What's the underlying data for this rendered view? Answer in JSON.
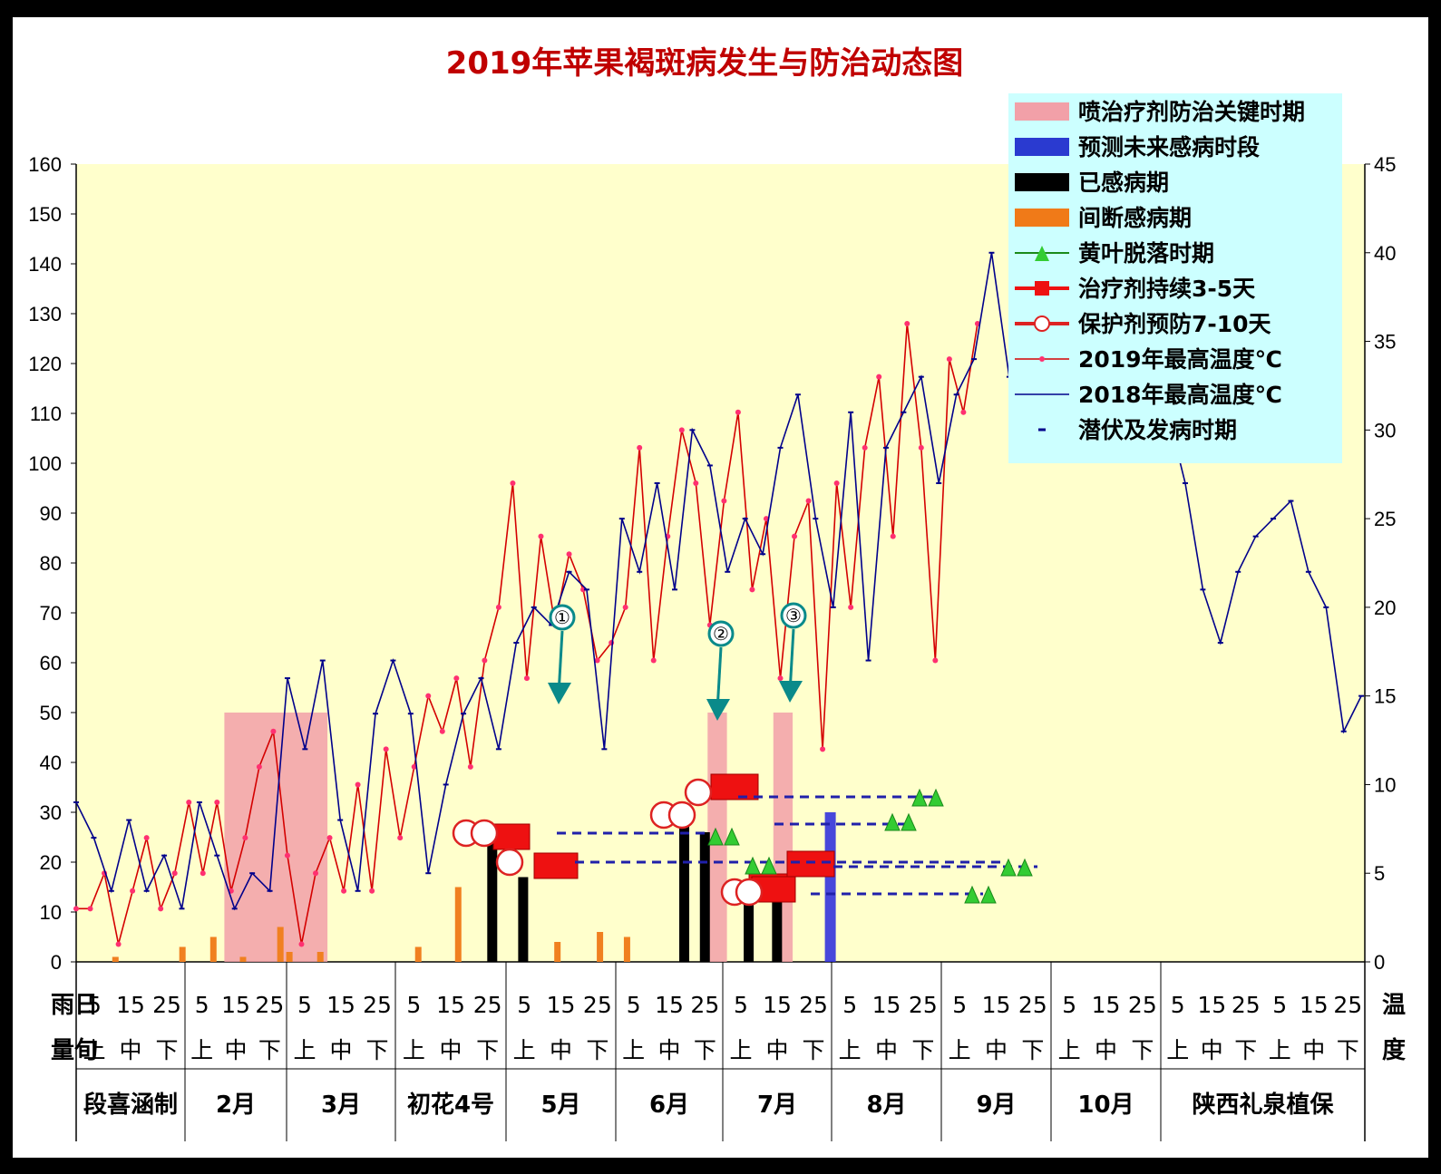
{
  "chart_data": {
    "type": "line",
    "title": "2019年苹果褐斑病发生与防治动态图",
    "left_axis": {
      "ylim": [
        0,
        160
      ],
      "ticks": [
        0,
        10,
        20,
        30,
        40,
        50,
        60,
        70,
        80,
        90,
        100,
        110,
        120,
        130,
        140,
        150,
        160
      ]
    },
    "right_axis": {
      "ylim": [
        0,
        45
      ],
      "ticks": [
        0,
        5,
        10,
        15,
        20,
        25,
        30,
        35,
        40,
        45
      ]
    },
    "x_axis": {
      "row_top_left": "雨量",
      "row_top_left2": "日旬",
      "row_top_right": "温度",
      "days": [
        "5",
        "15",
        "25"
      ],
      "decades": [
        "上",
        "中",
        "下"
      ],
      "months": [
        "段喜涵制",
        "2月",
        "3月",
        "初花4号",
        "5月",
        "6月",
        "7月",
        "8月",
        "9月",
        "10月",
        "陕西礼泉植保"
      ]
    },
    "series": [
      {
        "name": "2019年最高温度℃",
        "axis": "right",
        "color": "#d40000",
        "x": [
          0,
          4,
          8,
          12,
          16,
          20,
          24,
          28,
          32,
          36,
          40,
          44,
          48,
          52,
          56,
          60,
          64,
          68,
          72,
          76,
          80,
          84,
          88,
          92,
          96,
          100,
          104,
          108,
          112,
          116,
          120,
          124,
          128,
          132,
          136,
          140,
          144,
          148,
          152,
          156,
          160,
          164,
          168,
          172,
          176,
          180,
          184,
          188,
          192,
          196,
          200,
          204,
          208,
          212,
          216,
          220,
          224,
          228,
          232,
          236,
          240,
          244,
          248,
          252,
          256
        ],
        "values": [
          3,
          3,
          5,
          1,
          4,
          7,
          3,
          5,
          9,
          5,
          9,
          4,
          7,
          11,
          13,
          6,
          1,
          5,
          7,
          4,
          10,
          4,
          12,
          7,
          11,
          15,
          13,
          16,
          11,
          17,
          20,
          27,
          16,
          24,
          19,
          23,
          21,
          17,
          18,
          20,
          29,
          17,
          24,
          30,
          27,
          19,
          26,
          31,
          21,
          25,
          16,
          24,
          26,
          12,
          27,
          20,
          29,
          33,
          24,
          36,
          29,
          17,
          34,
          31,
          36
        ]
      },
      {
        "name": "2018年最高温度℃",
        "axis": "right",
        "color": "#00008b",
        "x": [
          0,
          5,
          10,
          15,
          20,
          25,
          30,
          35,
          40,
          45,
          50,
          55,
          60,
          65,
          70,
          75,
          80,
          85,
          90,
          95,
          100,
          105,
          110,
          115,
          120,
          125,
          130,
          135,
          140,
          145,
          150,
          155,
          160,
          165,
          170,
          175,
          180,
          185,
          190,
          195,
          200,
          205,
          210,
          215,
          220,
          225,
          230,
          235,
          240,
          245,
          250,
          255,
          260,
          265,
          270,
          275,
          280,
          285,
          290,
          295,
          300,
          305,
          310,
          315,
          320,
          325,
          330,
          335,
          340,
          345,
          350,
          355,
          360,
          365
        ],
        "values": [
          9,
          7,
          4,
          8,
          4,
          6,
          3,
          9,
          6,
          3,
          5,
          4,
          16,
          12,
          17,
          8,
          4,
          14,
          17,
          14,
          5,
          10,
          14,
          16,
          12,
          18,
          20,
          19,
          22,
          21,
          12,
          25,
          22,
          27,
          21,
          30,
          28,
          22,
          25,
          23,
          29,
          32,
          25,
          20,
          31,
          17,
          29,
          31,
          33,
          27,
          32,
          34,
          40,
          33,
          35,
          41,
          37,
          34,
          38,
          30,
          36,
          33,
          31,
          27,
          21,
          18,
          22,
          24,
          25,
          26,
          22,
          20,
          13,
          15
        ]
      }
    ],
    "markers": [
      "①",
      "②",
      "③"
    ],
    "legend": [
      "喷治疗剂防治关键时期",
      "预测未来感病时段",
      "已感病期",
      "间断感病期",
      "黄叶脱落时期",
      "治疗剂持续3-5天",
      "保护剂预防7-10天",
      "2019年最高温度℃",
      "2018年最高温度℃",
      "潜伏及发病时期"
    ],
    "legend_position": "top-right"
  }
}
